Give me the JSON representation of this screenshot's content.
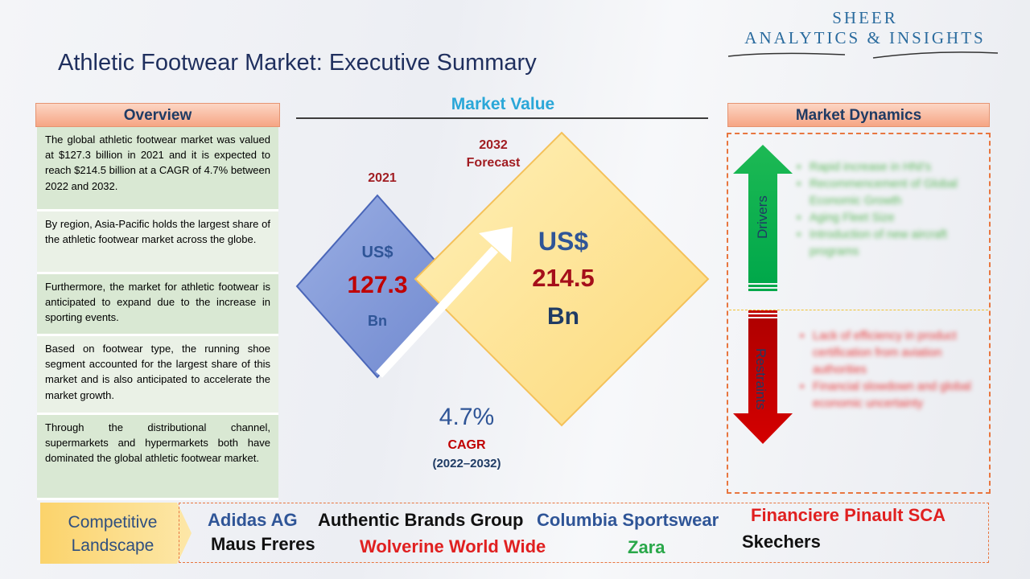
{
  "brand": {
    "line1": "SHEER",
    "line2": "ANALYTICS & INSIGHTS",
    "color": "#2a6b9e"
  },
  "title": "Athletic Footwear Market: Executive Summary",
  "overview": {
    "header": "Overview",
    "items": [
      "The global athletic footwear market was valued at $127.3 billion in 2021 and it is expected to reach $214.5 billion at a CAGR of 4.7% between 2022 and 2032.",
      "By region, Asia-Pacific holds the largest share of the athletic footwear market across the globe.",
      "Furthermore, the market for athletic footwear is anticipated to expand due to the increase in sporting events.",
      "Based on footwear type, the running shoe segment accounted for the largest share of this market and is also anticipated to accelerate the market growth.",
      "Through the distributional channel, supermarkets and hypermarkets both have dominated the global athletic footwear market."
    ]
  },
  "market_value": {
    "header": "Market Value",
    "y2021": {
      "year": "2021",
      "currency": "US$",
      "value": "127.3",
      "unit": "Bn"
    },
    "y2032": {
      "year": "2032",
      "label": "Forecast",
      "currency": "US$",
      "value": "214.5",
      "unit": "Bn"
    },
    "cagr": {
      "value": "4.7%",
      "label": "CAGR",
      "period": "(2022–2032)"
    }
  },
  "market_dynamics": {
    "header": "Market Dynamics",
    "drivers_label": "Drivers",
    "restraints_label": "Restraints",
    "drivers": [
      "Rapid increase in HNI's",
      "Recommencement of Global Economic Growth",
      "Aging Fleet Size",
      "Introduction of new aircraft programs"
    ],
    "restraints": [
      "Lack of efficiency in product certification from aviation authorities",
      "Financial slowdown and global economic uncertainty"
    ],
    "colors": {
      "drivers": "#00b050",
      "restraints": "#c00000"
    }
  },
  "competitive_landscape": {
    "label_line1": "Competitive",
    "label_line2": "Landscape",
    "companies": [
      {
        "name": "Adidas AG",
        "color": "#2f5597"
      },
      {
        "name": "Authentic Brands Group",
        "color": "#111111"
      },
      {
        "name": "Columbia Sportswear",
        "color": "#2f5597"
      },
      {
        "name": "Financiere Pinault SCA",
        "color": "#e02020"
      },
      {
        "name": "Maus Freres",
        "color": "#111111"
      },
      {
        "name": "Wolverine World Wide",
        "color": "#e02020"
      },
      {
        "name": "Zara",
        "color": "#2aa84a"
      },
      {
        "name": "Skechers",
        "color": "#111111"
      }
    ]
  }
}
